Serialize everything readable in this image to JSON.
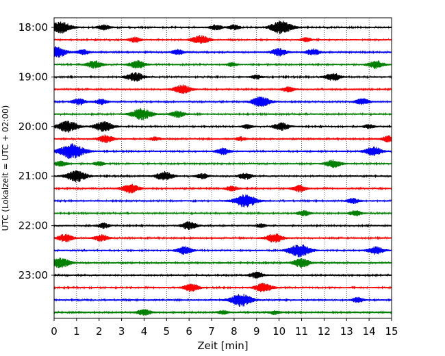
{
  "chart_data": {
    "type": "line",
    "xlabel": "Zeit  [min]",
    "ylabel": "UTC (Lokalzeit = UTC + 02:00)",
    "xlim": [
      0,
      15
    ],
    "x_ticks": [
      "0",
      "1",
      "2",
      "3",
      "4",
      "5",
      "6",
      "7",
      "8",
      "9",
      "10",
      "11",
      "12",
      "13",
      "14",
      "15"
    ],
    "y_ticks": [
      "18:00",
      "19:00",
      "20:00",
      "21:00",
      "22:00",
      "23:00"
    ],
    "grid": "vertical-dotted",
    "trace_colors": [
      "#000000",
      "#ff0000",
      "#0000ff",
      "#008000"
    ],
    "traces": [
      {
        "start": "18:00",
        "color": "#000000",
        "events": [
          [
            0.3,
            0.9
          ],
          [
            2.2,
            0.4
          ],
          [
            7.2,
            0.4
          ],
          [
            8.0,
            0.4
          ],
          [
            10.1,
            1.0
          ]
        ]
      },
      {
        "start": "18:15",
        "color": "#ff0000",
        "events": [
          [
            3.6,
            0.4
          ],
          [
            6.5,
            0.7
          ],
          [
            11.2,
            0.3
          ]
        ]
      },
      {
        "start": "18:30",
        "color": "#0000ff",
        "events": [
          [
            0.1,
            0.9
          ],
          [
            1.3,
            0.4
          ],
          [
            5.5,
            0.4
          ],
          [
            10.0,
            0.6
          ],
          [
            11.5,
            0.5
          ]
        ]
      },
      {
        "start": "18:45",
        "color": "#008000",
        "events": [
          [
            1.8,
            0.6
          ],
          [
            3.7,
            0.6
          ],
          [
            7.9,
            0.3
          ],
          [
            14.3,
            0.6
          ]
        ]
      },
      {
        "start": "19:00",
        "color": "#000000",
        "events": [
          [
            3.6,
            0.7
          ],
          [
            9.0,
            0.3
          ],
          [
            12.4,
            0.6
          ]
        ]
      },
      {
        "start": "19:15",
        "color": "#ff0000",
        "events": [
          [
            5.7,
            0.7
          ],
          [
            10.4,
            0.4
          ]
        ]
      },
      {
        "start": "19:30",
        "color": "#0000ff",
        "events": [
          [
            1.1,
            0.5
          ],
          [
            2.1,
            0.4
          ],
          [
            9.2,
            0.8
          ],
          [
            13.7,
            0.5
          ]
        ]
      },
      {
        "start": "19:45",
        "color": "#008000",
        "events": [
          [
            3.9,
            0.9
          ],
          [
            5.5,
            0.5
          ]
        ]
      },
      {
        "start": "20:00",
        "color": "#000000",
        "events": [
          [
            0.6,
            0.9
          ],
          [
            2.2,
            0.8
          ],
          [
            8.6,
            0.3
          ],
          [
            10.1,
            0.6
          ],
          [
            14.0,
            0.3
          ]
        ]
      },
      {
        "start": "20:15",
        "color": "#ff0000",
        "events": [
          [
            2.3,
            0.6
          ],
          [
            4.5,
            0.3
          ],
          [
            8.3,
            0.3
          ],
          [
            14.9,
            0.5
          ]
        ]
      },
      {
        "start": "20:30",
        "color": "#0000ff",
        "events": [
          [
            0.8,
            1.2
          ],
          [
            7.5,
            0.5
          ],
          [
            14.2,
            0.7
          ]
        ]
      },
      {
        "start": "20:45",
        "color": "#008000",
        "events": [
          [
            0.3,
            0.4
          ],
          [
            2.0,
            0.3
          ],
          [
            12.4,
            0.6
          ]
        ]
      },
      {
        "start": "21:00",
        "color": "#000000",
        "events": [
          [
            1.0,
            0.9
          ],
          [
            4.9,
            0.7
          ],
          [
            6.6,
            0.4
          ],
          [
            8.5,
            0.5
          ]
        ]
      },
      {
        "start": "21:15",
        "color": "#ff0000",
        "events": [
          [
            3.4,
            0.7
          ],
          [
            7.9,
            0.4
          ],
          [
            10.9,
            0.5
          ]
        ]
      },
      {
        "start": "21:30",
        "color": "#0000ff",
        "events": [
          [
            8.5,
            1.0
          ],
          [
            13.3,
            0.4
          ]
        ]
      },
      {
        "start": "21:45",
        "color": "#008000",
        "events": [
          [
            11.1,
            0.4
          ],
          [
            13.4,
            0.4
          ]
        ]
      },
      {
        "start": "22:00",
        "color": "#000000",
        "events": [
          [
            2.2,
            0.4
          ],
          [
            6.0,
            0.6
          ],
          [
            9.2,
            0.3
          ]
        ]
      },
      {
        "start": "22:15",
        "color": "#ff0000",
        "events": [
          [
            0.5,
            0.6
          ],
          [
            2.1,
            0.5
          ],
          [
            9.8,
            0.7
          ]
        ]
      },
      {
        "start": "22:30",
        "color": "#0000ff",
        "events": [
          [
            5.8,
            0.6
          ],
          [
            10.9,
            1.0
          ],
          [
            14.3,
            0.6
          ]
        ]
      },
      {
        "start": "22:45",
        "color": "#008000",
        "events": [
          [
            0.3,
            0.8
          ],
          [
            11.0,
            0.7
          ]
        ]
      },
      {
        "start": "23:00",
        "color": "#000000",
        "events": [
          [
            9.0,
            0.5
          ]
        ]
      },
      {
        "start": "23:15",
        "color": "#ff0000",
        "events": [
          [
            6.1,
            0.6
          ],
          [
            9.3,
            0.7
          ]
        ]
      },
      {
        "start": "23:30",
        "color": "#0000ff",
        "events": [
          [
            8.3,
            1.0
          ],
          [
            13.5,
            0.4
          ]
        ]
      },
      {
        "start": "23:45",
        "color": "#008000",
        "events": [
          [
            4.0,
            0.5
          ],
          [
            7.5,
            0.3
          ],
          [
            9.8,
            0.3
          ]
        ]
      }
    ]
  }
}
